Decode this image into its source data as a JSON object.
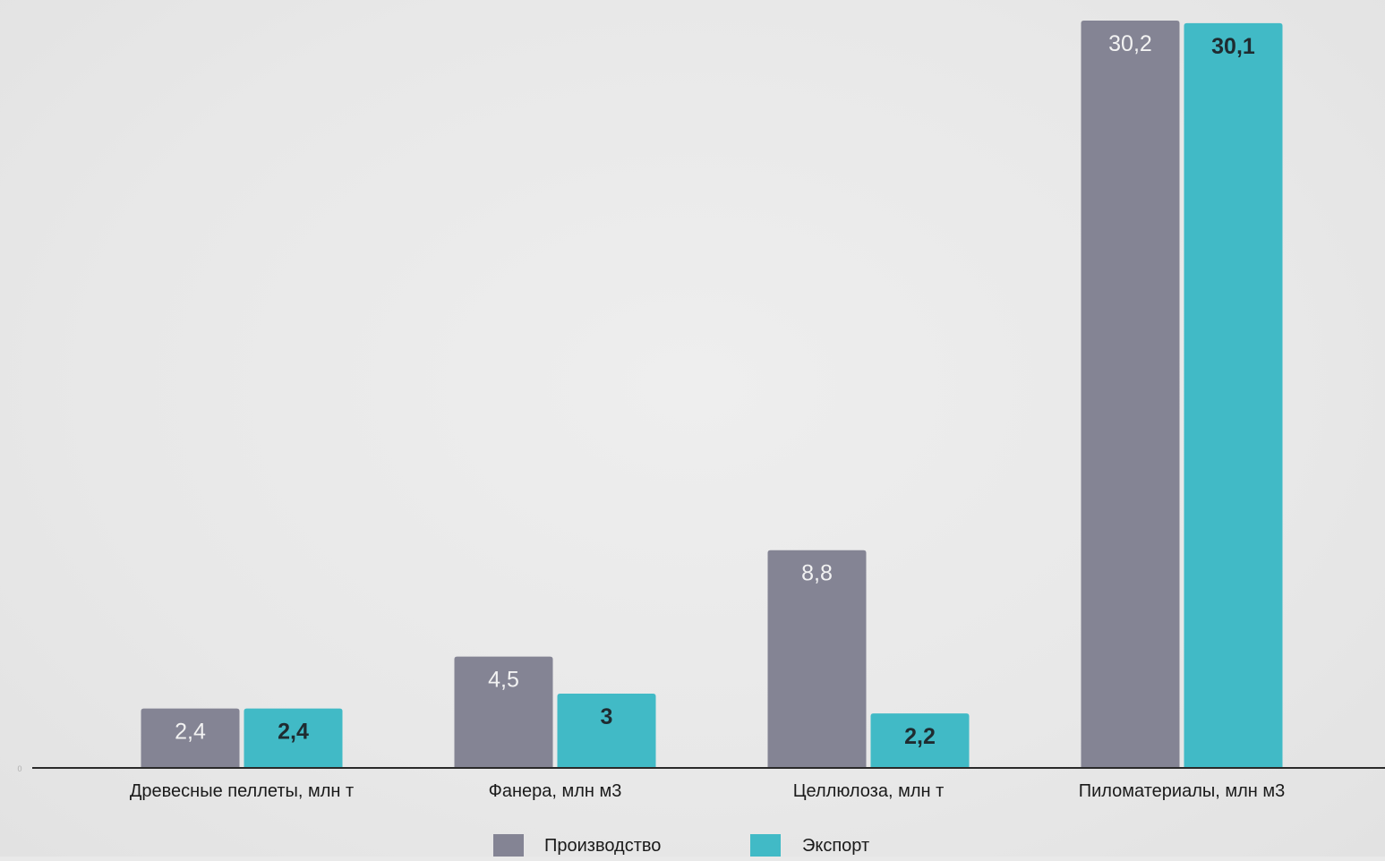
{
  "chart_data": {
    "type": "bar",
    "title": "",
    "xlabel": "",
    "ylabel": "",
    "categories": [
      "Древесные пеллеты, млн т",
      "Фанера, млн м3",
      "Целлюлоза, млн т",
      "Пиломатериалы, млн м3"
    ],
    "series": [
      {
        "name": "Производство",
        "values": [
          2.4,
          4.5,
          8.8,
          30.2
        ],
        "labels": [
          "2,4",
          "4,5",
          "8,8",
          "30,2"
        ]
      },
      {
        "name": "Экспорт",
        "values": [
          2.4,
          3,
          2.2,
          30.1
        ],
        "labels": [
          "2,4",
          "3",
          "2,2",
          "30,1"
        ]
      }
    ],
    "ylim": [
      0,
      30.6
    ],
    "grid": false,
    "legend_position": "bottom",
    "axis_tick_label": "0",
    "colors": {
      "Производство": "#848494",
      "Экспорт": "#41bac6",
      "label_on_production": "#f2f2f2",
      "label_on_export": "#1f2b30",
      "axis": "#2a2a2a",
      "text": "#1a1a1a"
    }
  }
}
